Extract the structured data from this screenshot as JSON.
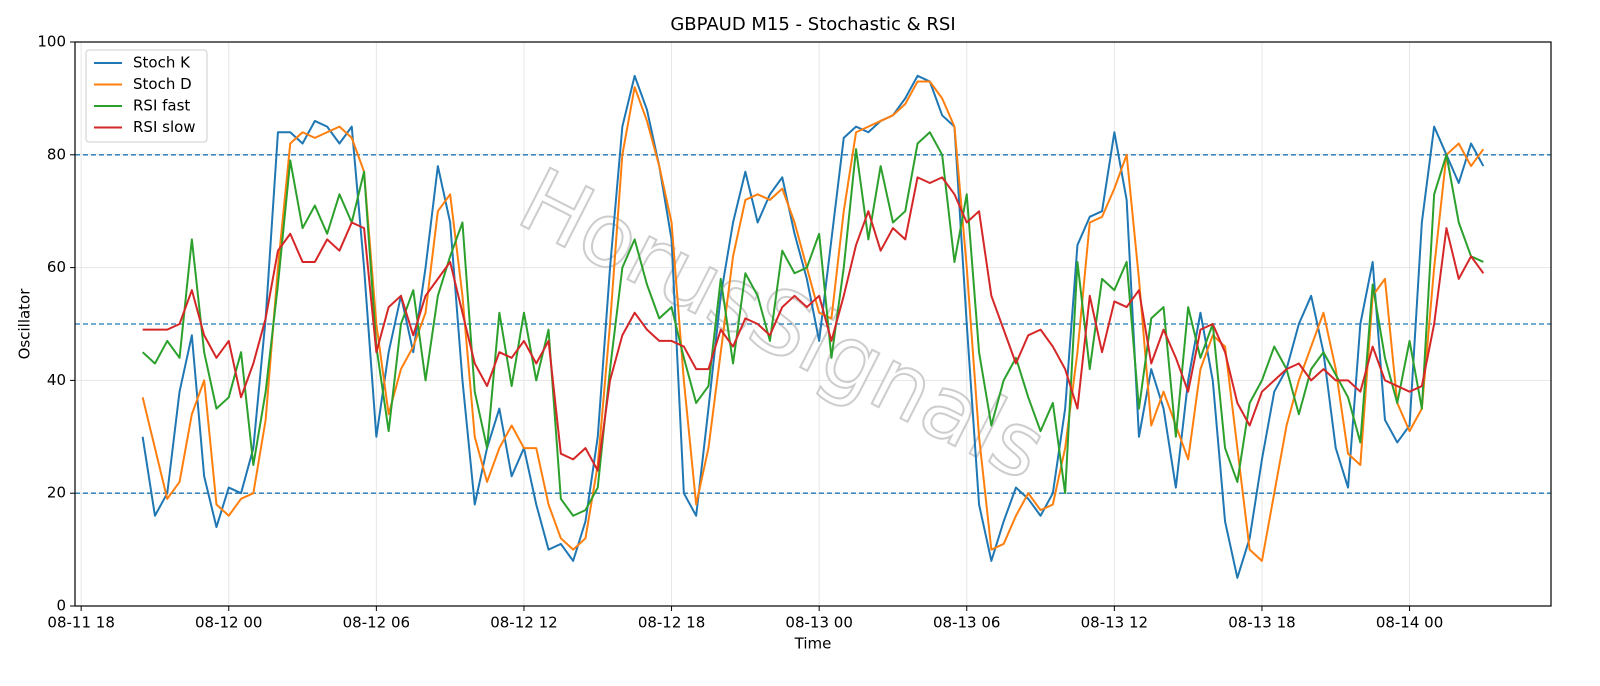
{
  "chart_data": {
    "type": "line",
    "title": "GBPAUD M15 - Stochastic & RSI",
    "xlabel": "Time",
    "ylabel": "Oscillator",
    "watermark": "HorusSignals",
    "x": [
      "08-11 20:30",
      "08-11 21:00",
      "08-11 21:30",
      "08-11 22:00",
      "08-11 22:30",
      "08-11 23:00",
      "08-11 23:30",
      "08-12 00:00",
      "08-12 00:30",
      "08-12 01:00",
      "08-12 01:30",
      "08-12 02:00",
      "08-12 02:30",
      "08-12 03:00",
      "08-12 03:30",
      "08-12 04:00",
      "08-12 04:30",
      "08-12 05:00",
      "08-12 05:30",
      "08-12 06:00",
      "08-12 06:30",
      "08-12 07:00",
      "08-12 07:30",
      "08-12 08:00",
      "08-12 08:30",
      "08-12 09:00",
      "08-12 09:30",
      "08-12 10:00",
      "08-12 10:30",
      "08-12 11:00",
      "08-12 11:30",
      "08-12 12:00",
      "08-12 12:30",
      "08-12 13:00",
      "08-12 13:30",
      "08-12 14:00",
      "08-12 14:30",
      "08-12 15:00",
      "08-12 15:30",
      "08-12 16:00",
      "08-12 16:30",
      "08-12 17:00",
      "08-12 17:30",
      "08-12 18:00",
      "08-12 18:30",
      "08-12 19:00",
      "08-12 19:30",
      "08-12 20:00",
      "08-12 20:30",
      "08-12 21:00",
      "08-12 21:30",
      "08-12 22:00",
      "08-12 22:30",
      "08-12 23:00",
      "08-12 23:30",
      "08-13 00:00",
      "08-13 00:30",
      "08-13 01:00",
      "08-13 01:30",
      "08-13 02:00",
      "08-13 02:30",
      "08-13 03:00",
      "08-13 03:30",
      "08-13 04:00",
      "08-13 04:30",
      "08-13 05:00",
      "08-13 05:30",
      "08-13 06:00",
      "08-13 06:30",
      "08-13 07:00",
      "08-13 07:30",
      "08-13 08:00",
      "08-13 08:30",
      "08-13 09:00",
      "08-13 09:30",
      "08-13 10:00",
      "08-13 10:30",
      "08-13 11:00",
      "08-13 11:30",
      "08-13 12:00",
      "08-13 12:30",
      "08-13 13:00",
      "08-13 13:30",
      "08-13 14:00",
      "08-13 14:30",
      "08-13 15:00",
      "08-13 15:30",
      "08-13 16:00",
      "08-13 16:30",
      "08-13 17:00",
      "08-13 17:30",
      "08-13 18:00",
      "08-13 18:30",
      "08-13 19:00",
      "08-13 19:30",
      "08-13 20:00",
      "08-13 20:30",
      "08-13 21:00",
      "08-13 21:30",
      "08-13 22:00",
      "08-13 22:30",
      "08-13 23:00",
      "08-13 23:30",
      "08-14 00:00",
      "08-14 00:30",
      "08-14 01:00",
      "08-14 01:30",
      "08-14 02:00",
      "08-14 02:30",
      "08-14 03:00"
    ],
    "series": [
      {
        "name": "Stoch K",
        "color": "#1f77b4",
        "values": [
          30,
          16,
          20,
          38,
          48,
          23,
          14,
          21,
          20,
          28,
          51,
          84,
          84,
          82,
          86,
          85,
          82,
          85,
          60,
          30,
          45,
          55,
          45,
          60,
          78,
          68,
          40,
          18,
          28,
          35,
          23,
          28,
          18,
          10,
          11,
          8,
          15,
          30,
          60,
          85,
          94,
          88,
          78,
          65,
          20,
          16,
          35,
          55,
          68,
          77,
          68,
          73,
          76,
          66,
          58,
          47,
          65,
          83,
          85,
          84,
          86,
          87,
          90,
          94,
          93,
          87,
          85,
          50,
          18,
          8,
          15,
          21,
          19,
          16,
          20,
          35,
          64,
          69,
          70,
          84,
          72,
          30,
          42,
          35,
          21,
          40,
          52,
          40,
          15,
          5,
          12,
          26,
          38,
          42,
          50,
          55,
          45,
          28,
          21,
          50,
          61,
          33,
          29,
          32,
          68,
          85,
          80,
          75,
          82,
          78
        ]
      },
      {
        "name": "Stoch D",
        "color": "#ff7f0e",
        "values": [
          37,
          28,
          19,
          22,
          34,
          40,
          18,
          16,
          19,
          20,
          33,
          60,
          82,
          84,
          83,
          84,
          85,
          83,
          77,
          50,
          34,
          42,
          46,
          52,
          70,
          73,
          55,
          30,
          22,
          28,
          32,
          28,
          28,
          18,
          12,
          10,
          12,
          25,
          50,
          80,
          92,
          86,
          78,
          68,
          40,
          18,
          28,
          45,
          62,
          72,
          73,
          72,
          74,
          68,
          60,
          52,
          51,
          70,
          84,
          85,
          86,
          87,
          89,
          93,
          93,
          90,
          85,
          60,
          30,
          10,
          11,
          16,
          20,
          17,
          18,
          28,
          45,
          68,
          69,
          74,
          80,
          58,
          32,
          38,
          32,
          26,
          42,
          48,
          46,
          28,
          10,
          8,
          20,
          32,
          40,
          46,
          52,
          42,
          27,
          25,
          55,
          58,
          36,
          31,
          35,
          60,
          80,
          82,
          78,
          81
        ]
      },
      {
        "name": "RSI fast",
        "color": "#2ca02c",
        "values": [
          45,
          43,
          47,
          44,
          65,
          45,
          35,
          37,
          45,
          25,
          38,
          57,
          79,
          67,
          71,
          66,
          73,
          68,
          77,
          46,
          31,
          50,
          56,
          40,
          55,
          62,
          68,
          38,
          28,
          52,
          39,
          52,
          40,
          49,
          19,
          16,
          17,
          21,
          42,
          60,
          65,
          57,
          51,
          53,
          44,
          36,
          39,
          58,
          43,
          59,
          55,
          47,
          63,
          59,
          60,
          66,
          44,
          60,
          81,
          65,
          78,
          68,
          70,
          82,
          84,
          80,
          61,
          73,
          45,
          32,
          40,
          44,
          37,
          31,
          36,
          20,
          61,
          42,
          58,
          56,
          61,
          35,
          51,
          53,
          30,
          53,
          44,
          50,
          28,
          22,
          36,
          40,
          46,
          42,
          34,
          42,
          45,
          41,
          37,
          29,
          57,
          44,
          36,
          47,
          35,
          73,
          80,
          68,
          62,
          61
        ]
      },
      {
        "name": "RSI slow",
        "color": "#d62728",
        "values": [
          49,
          49,
          49,
          50,
          56,
          48,
          44,
          47,
          37,
          43,
          51,
          63,
          66,
          61,
          61,
          65,
          63,
          68,
          67,
          45,
          53,
          55,
          48,
          55,
          58,
          61,
          52,
          43,
          39,
          45,
          44,
          47,
          43,
          47,
          27,
          26,
          28,
          24,
          40,
          48,
          52,
          49,
          47,
          47,
          46,
          42,
          42,
          49,
          46,
          51,
          50,
          48,
          53,
          55,
          53,
          55,
          47,
          55,
          64,
          70,
          63,
          67,
          65,
          76,
          75,
          76,
          73,
          68,
          70,
          55,
          49,
          43,
          48,
          49,
          46,
          42,
          35,
          55,
          45,
          54,
          53,
          56,
          43,
          49,
          44,
          38,
          49,
          50,
          45,
          36,
          32,
          38,
          40,
          42,
          43,
          40,
          42,
          40,
          40,
          38,
          46,
          40,
          39,
          38,
          39,
          50,
          67,
          58,
          62,
          59
        ]
      }
    ],
    "hlines": [
      20,
      50,
      80
    ],
    "hline_color": "#1f77b4",
    "xlim": [
      "08-11 17:45",
      "08-14 05:45"
    ],
    "xticks": [
      "08-11 18",
      "08-12 00",
      "08-12 06",
      "08-12 12",
      "08-12 18",
      "08-13 00",
      "08-13 06",
      "08-13 12",
      "08-13 18",
      "08-14 00"
    ],
    "ylim": [
      0,
      100
    ],
    "yticks": [
      0,
      20,
      40,
      60,
      80,
      100
    ],
    "grid": true,
    "legend": "upper left"
  }
}
